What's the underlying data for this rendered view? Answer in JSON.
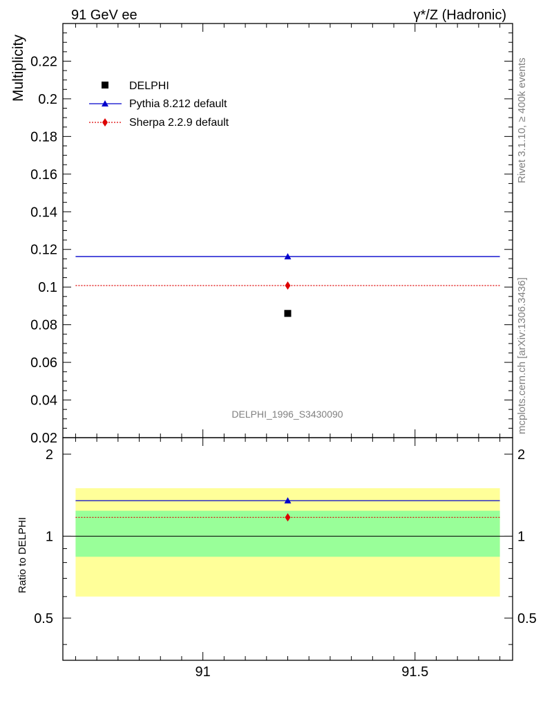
{
  "header": {
    "left_title": "91 GeV ee",
    "right_title": "γ*/Z (Hadronic)"
  },
  "side_text": {
    "rivet": "Rivet 3.1.10, ≥ 400k events",
    "mcplots": "mcplots.cern.ch [arXiv:1306.3436]"
  },
  "analysis_label": "DELPHI_1996_S3430090",
  "colors": {
    "data": "#000000",
    "pythia": "#0000cc",
    "sherpa": "#dd0000",
    "band_inner": "#99ff99",
    "band_outer": "#ffff99"
  },
  "chart_data": [
    {
      "type": "scatter",
      "panel": "main",
      "ylabel": "Multiplicity",
      "xlim": [
        90.67,
        91.73
      ],
      "ylim": [
        0.02,
        0.24
      ],
      "yticks": [
        0.02,
        0.04,
        0.06,
        0.08,
        0.1,
        0.12,
        0.14,
        0.16,
        0.18,
        0.2,
        0.22
      ],
      "ytick_labels": [
        "0.02",
        "0.04",
        "0.06",
        "0.08",
        "0.1",
        "0.12",
        "0.14",
        "0.16",
        "0.18",
        "0.2",
        "0.22"
      ],
      "series": [
        {
          "name": "DELPHI",
          "marker": "square",
          "x": [
            91.2
          ],
          "values": [
            0.086
          ]
        },
        {
          "name": "Pythia 8.212 default",
          "marker": "triangle",
          "line": "solid",
          "x_range": [
            90.7,
            91.7
          ],
          "x": [
            91.2
          ],
          "values": [
            0.1162
          ]
        },
        {
          "name": "Sherpa 2.2.9 default",
          "marker": "diamond",
          "line": "dotted",
          "x_range": [
            90.7,
            91.7
          ],
          "x": [
            91.2
          ],
          "values": [
            0.1008
          ]
        }
      ],
      "legend": [
        "DELPHI",
        "Pythia 8.212 default",
        "Sherpa 2.2.9 default"
      ],
      "legend_position": "top-left"
    },
    {
      "type": "line",
      "panel": "ratio",
      "ylabel": "Ratio to DELPHI",
      "xlabel": "",
      "xlim": [
        90.67,
        91.73
      ],
      "ylim": [
        0.35,
        2.3
      ],
      "yscale": "log",
      "yticks": [
        0.5,
        1,
        2
      ],
      "ytick_labels": [
        "0.5",
        "1",
        "2"
      ],
      "xticks": [
        91,
        91.5
      ],
      "xtick_labels": [
        "91",
        "91.5"
      ],
      "bands": [
        {
          "name": "outer uncertainty",
          "low": 0.6,
          "high": 1.5,
          "x_range": [
            90.7,
            91.7
          ]
        },
        {
          "name": "inner uncertainty",
          "low": 0.84,
          "high": 1.24,
          "x_range": [
            90.7,
            91.7
          ]
        }
      ],
      "series": [
        {
          "name": "Pythia 8.212 default",
          "x_range": [
            90.7,
            91.7
          ],
          "x": [
            91.2
          ],
          "values": [
            1.35
          ]
        },
        {
          "name": "Sherpa 2.2.9 default",
          "x_range": [
            90.7,
            91.7
          ],
          "x": [
            91.2
          ],
          "values": [
            1.172
          ]
        }
      ],
      "reference_line": 1
    }
  ]
}
